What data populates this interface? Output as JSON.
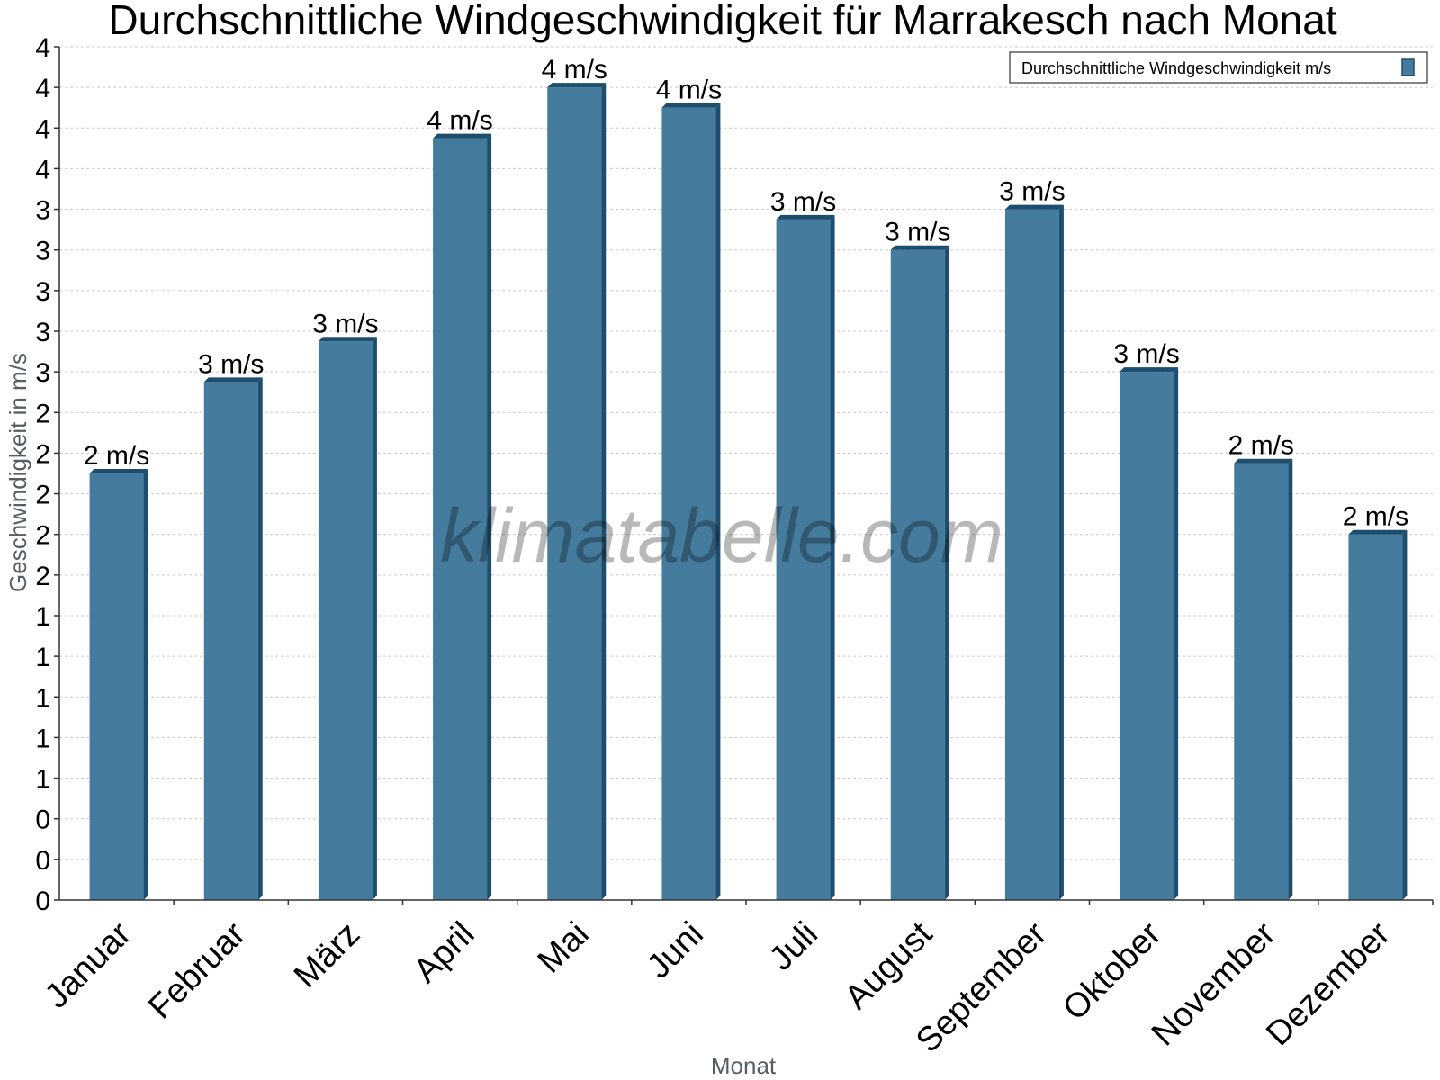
{
  "watermark": "klimatabelle.com",
  "chart_data": {
    "type": "bar",
    "title": "Durchschnittliche Windgeschwindigkeit für Marrakesch nach Monat",
    "xlabel": "Monat",
    "ylabel": "Geschwindigkeit in m/s",
    "categories": [
      "Januar",
      "Februar",
      "März",
      "April",
      "Mai",
      "Juni",
      "Juli",
      "August",
      "September",
      "Oktober",
      "November",
      "Dezember"
    ],
    "series": [
      {
        "name": "Durchschnittliche Windgeschwindigkeit m/s",
        "color": "#457b9d",
        "side_color": "#1d4e6e",
        "values": [
          2.1,
          2.55,
          2.75,
          3.75,
          4.0,
          3.9,
          3.35,
          3.2,
          3.4,
          2.6,
          2.15,
          1.8
        ],
        "labels": [
          "2 m/s",
          "3 m/s",
          "3 m/s",
          "4 m/s",
          "4 m/s",
          "4 m/s",
          "3 m/s",
          "3 m/s",
          "3 m/s",
          "3 m/s",
          "2 m/s",
          "2 m/s"
        ]
      }
    ],
    "ylim": [
      0,
      4.2
    ],
    "y_tick_step": 0.2,
    "y_tick_labels": [
      "0",
      "0",
      "0",
      "1",
      "1",
      "1",
      "1",
      "1",
      "2",
      "2",
      "2",
      "2",
      "2",
      "3",
      "3",
      "3",
      "3",
      "3",
      "4",
      "4",
      "4",
      "4"
    ],
    "grid": true,
    "legend_position": "top-right"
  }
}
